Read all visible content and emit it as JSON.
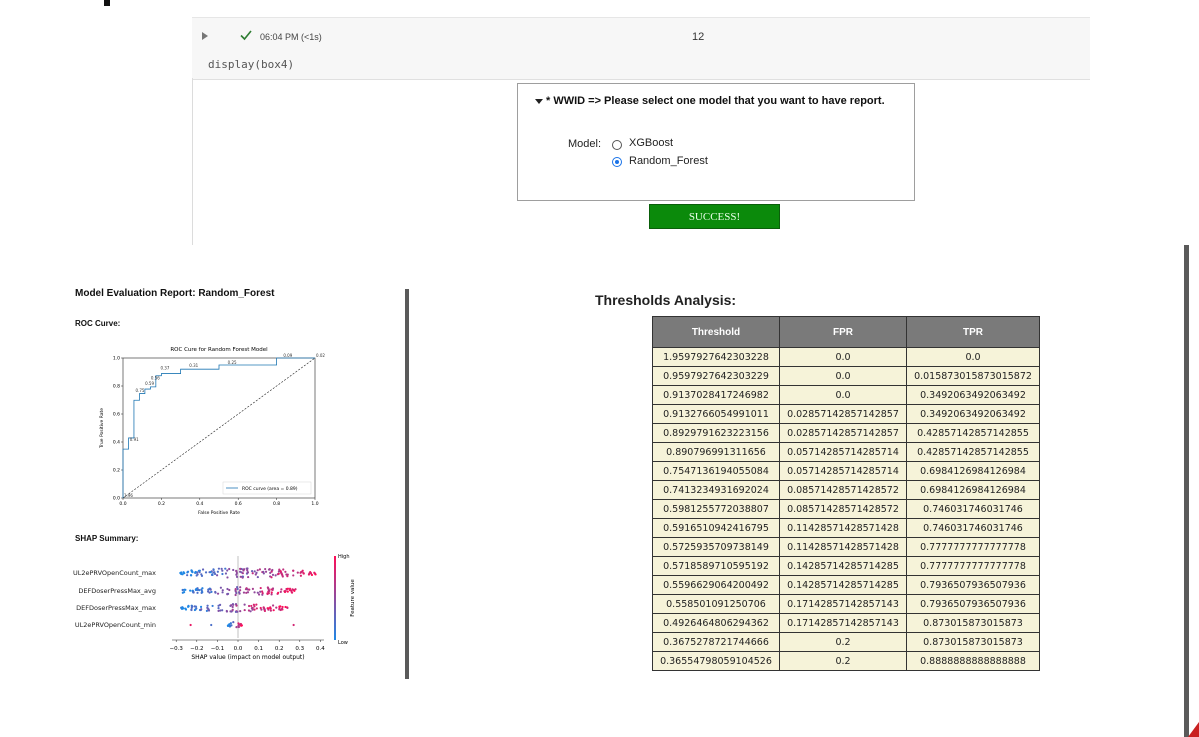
{
  "cell": {
    "status_time": "06:04 PM (<1s)",
    "exec_count": "12",
    "code": "display(box4)"
  },
  "widget": {
    "accordion_title": "* WWID => Please select one model that you want to have report.",
    "model_label": "Model:",
    "options": [
      {
        "label": "XGBoost",
        "selected": false
      },
      {
        "label": "Random_Forest",
        "selected": true
      }
    ],
    "success_label": "SUCCESS!"
  },
  "report": {
    "title": "Model Evaluation Report: Random_Forest",
    "roc_label": "ROC Curve:",
    "shap_label": "SHAP Summary:"
  },
  "roc_chart": {
    "title": "ROC Cure for Random Forest Model",
    "xlabel": "False Positive Rate",
    "ylabel": "True Positive Rate",
    "legend": "ROC curve (area = 0.89)",
    "xticks": [
      "0.0",
      "0.2",
      "0.4",
      "0.6",
      "0.8",
      "1.0"
    ],
    "yticks": [
      "0.0",
      "0.2",
      "0.4",
      "0.6",
      "0.8",
      "1.0"
    ],
    "annotations": [
      {
        "text": "1.96",
        "x": 0.0,
        "y": 0.0
      },
      {
        "text": "0.91",
        "x": 0.03,
        "y": 0.4
      },
      {
        "text": "0.75",
        "x": 0.06,
        "y": 0.75
      },
      {
        "text": "0.59",
        "x": 0.11,
        "y": 0.8
      },
      {
        "text": "0.56",
        "x": 0.14,
        "y": 0.84
      },
      {
        "text": "0.37",
        "x": 0.19,
        "y": 0.91
      },
      {
        "text": "0.31",
        "x": 0.34,
        "y": 0.93
      },
      {
        "text": "0.25",
        "x": 0.54,
        "y": 0.95
      },
      {
        "text": "0.09",
        "x": 0.83,
        "y": 1.0
      },
      {
        "text": "0.02",
        "x": 1.0,
        "y": 1.0
      }
    ],
    "curve": [
      [
        0,
        0
      ],
      [
        0,
        0.016
      ],
      [
        0,
        0.349
      ],
      [
        0.029,
        0.349
      ],
      [
        0.029,
        0.429
      ],
      [
        0.057,
        0.429
      ],
      [
        0.057,
        0.698
      ],
      [
        0.086,
        0.698
      ],
      [
        0.086,
        0.746
      ],
      [
        0.114,
        0.746
      ],
      [
        0.114,
        0.778
      ],
      [
        0.143,
        0.778
      ],
      [
        0.143,
        0.794
      ],
      [
        0.171,
        0.794
      ],
      [
        0.171,
        0.873
      ],
      [
        0.2,
        0.873
      ],
      [
        0.2,
        0.889
      ],
      [
        0.3,
        0.889
      ],
      [
        0.3,
        0.92
      ],
      [
        0.5,
        0.92
      ],
      [
        0.5,
        0.95
      ],
      [
        0.8,
        0.95
      ],
      [
        0.8,
        1.0
      ],
      [
        1.0,
        1.0
      ]
    ],
    "line_color": "#1f77b4"
  },
  "shap_chart": {
    "features": [
      "UL2ePRVOpenCount_max",
      "DEFDoserPressMax_avg",
      "DEFDoserPressMax_max",
      "UL2ePRVOpenCount_min"
    ],
    "xticks": [
      "−0.3",
      "−0.2",
      "−0.1",
      "0.0",
      "0.1",
      "0.2",
      "0.3",
      "0.4"
    ],
    "xlabel": "SHAP value (impact on model output)",
    "colorbar_high": "High",
    "colorbar_low": "Low",
    "colorbar_label": "Feature value",
    "color_low": "#1e88e5",
    "color_high": "#ff0d57"
  },
  "thresholds": {
    "title": "Thresholds Analysis:",
    "headers": [
      "Threshold",
      "FPR",
      "TPR"
    ],
    "rows": [
      [
        "1.9597927642303228",
        "0.0",
        "0.0"
      ],
      [
        "0.9597927642303229",
        "0.0",
        "0.015873015873015872"
      ],
      [
        "0.9137028417246982",
        "0.0",
        "0.3492063492063492"
      ],
      [
        "0.9132766054991011",
        "0.02857142857142857",
        "0.3492063492063492"
      ],
      [
        "0.8929791623223156",
        "0.02857142857142857",
        "0.42857142857142855"
      ],
      [
        "0.890796991311656",
        "0.05714285714285714",
        "0.42857142857142855"
      ],
      [
        "0.7547136194055084",
        "0.05714285714285714",
        "0.6984126984126984"
      ],
      [
        "0.7413234931692024",
        "0.08571428571428572",
        "0.6984126984126984"
      ],
      [
        "0.5981255772038807",
        "0.08571428571428572",
        "0.746031746031746"
      ],
      [
        "0.5916510942416795",
        "0.11428571428571428",
        "0.746031746031746"
      ],
      [
        "0.5725935709738149",
        "0.11428571428571428",
        "0.7777777777777778"
      ],
      [
        "0.5718589710595192",
        "0.14285714285714285",
        "0.7777777777777778"
      ],
      [
        "0.5596629064200492",
        "0.14285714285714285",
        "0.7936507936507936"
      ],
      [
        "0.558501091250706",
        "0.17142857142857143",
        "0.7936507936507936"
      ],
      [
        "0.4926464806294362",
        "0.17142857142857143",
        "0.873015873015873"
      ],
      [
        "0.3675278721744666",
        "0.2",
        "0.873015873015873"
      ],
      [
        "0.36554798059104526",
        "0.2",
        "0.8888888888888888"
      ]
    ]
  }
}
